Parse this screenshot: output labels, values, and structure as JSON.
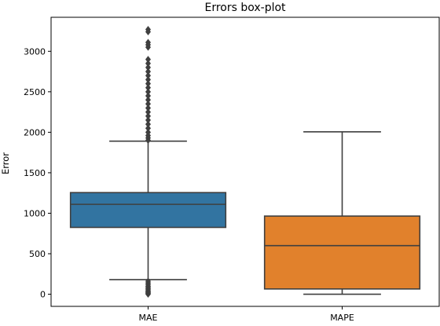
{
  "chart_data": {
    "type": "boxplot",
    "title": "Errors box-plot",
    "xlabel": "",
    "ylabel": "Error",
    "ylim": [
      -150,
      3420
    ],
    "yticks": [
      0,
      500,
      1000,
      1500,
      2000,
      2500,
      3000
    ],
    "grid": false,
    "categories": [
      "MAE",
      "MAPE"
    ],
    "boxes": [
      {
        "category": "MAE",
        "color": "#3274a1",
        "whisker_low": 180,
        "q1": 825,
        "median": 1110,
        "q3": 1255,
        "whisker_high": 1890,
        "outliers": [
          0,
          10,
          20,
          30,
          40,
          55,
          70,
          85,
          100,
          120,
          140,
          160,
          1900,
          1930,
          1960,
          2000,
          2050,
          2100,
          2150,
          2200,
          2250,
          2300,
          2350,
          2400,
          2450,
          2500,
          2550,
          2600,
          2650,
          2700,
          2750,
          2800,
          2850,
          2900,
          3050,
          3080,
          3110,
          3240,
          3270
        ]
      },
      {
        "category": "MAPE",
        "color": "#e1812c",
        "whisker_low": 0,
        "q1": 65,
        "median": 600,
        "q3": 965,
        "whisker_high": 2005,
        "outliers": []
      }
    ]
  }
}
